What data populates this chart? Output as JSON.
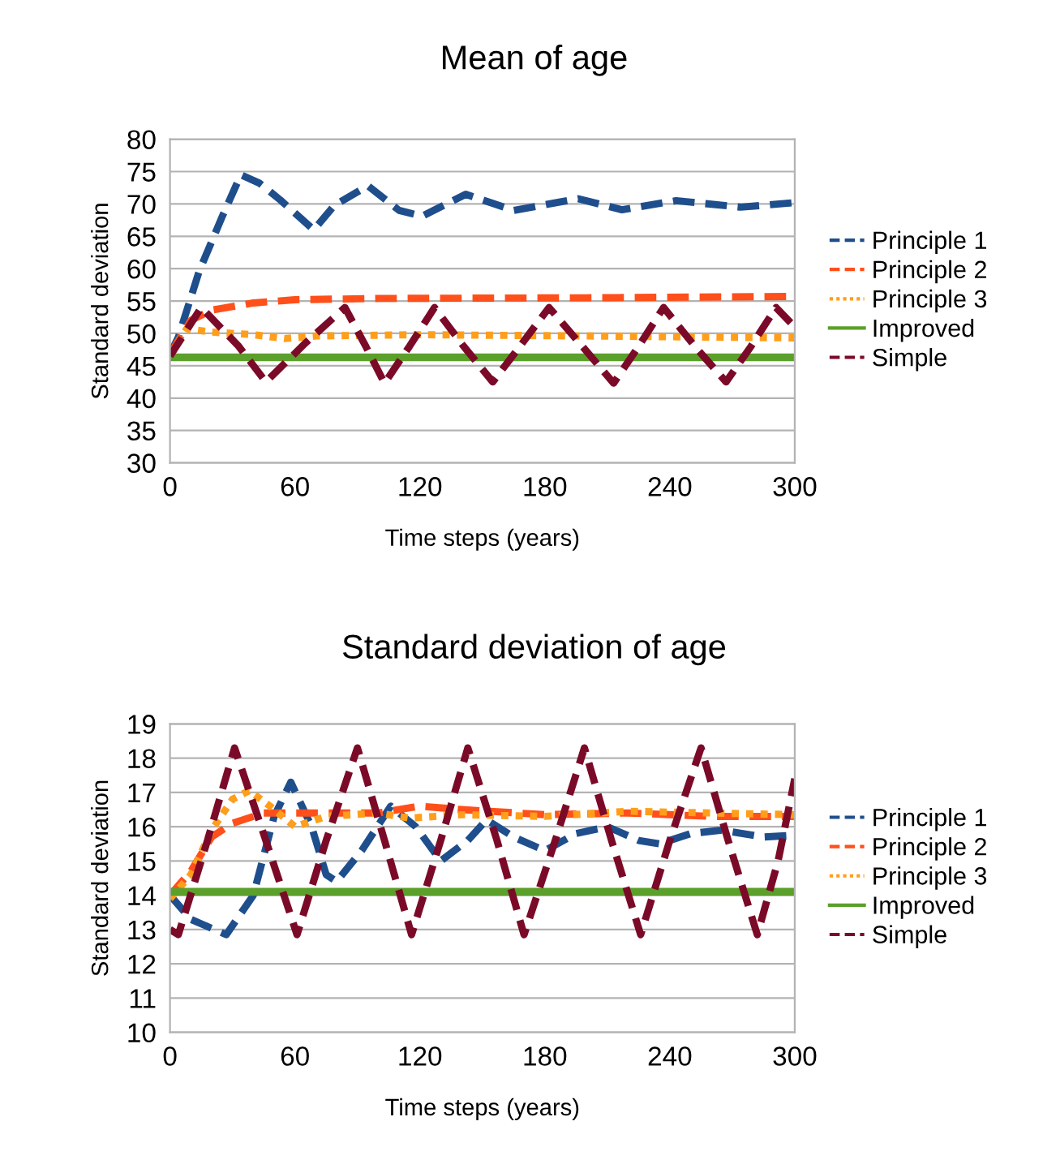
{
  "chart_data": [
    {
      "type": "line",
      "title": "Mean of age",
      "xlabel": "Time steps (years)",
      "ylabel": "Standard deviation",
      "xlim": [
        0,
        300
      ],
      "xticks": [
        0,
        60,
        120,
        180,
        240,
        300
      ],
      "ylim": [
        30,
        80
      ],
      "yticks": [
        30,
        35,
        40,
        45,
        50,
        55,
        60,
        65,
        70,
        75,
        80
      ],
      "grid": "y",
      "legend": "right",
      "marker": "none",
      "series": [
        {
          "name": "Principle 1",
          "color": "#1f4e8c",
          "line_style": "dashed",
          "x": [
            0,
            4,
            14,
            25,
            34,
            43,
            53,
            69,
            79,
            95,
            110,
            121,
            142,
            165,
            196,
            217,
            243,
            274,
            300
          ],
          "values": [
            46.8,
            49.4,
            59.6,
            68,
            74.5,
            73.2,
            70.6,
            66,
            69.8,
            72.8,
            69,
            68.1,
            71.5,
            69,
            70.8,
            69.1,
            70.5,
            69.5,
            70.2
          ]
        },
        {
          "name": "Principle 2",
          "color": "#ff4f1a",
          "line_style": "dashed",
          "x": [
            0,
            10,
            20,
            40,
            60,
            100,
            200,
            300
          ],
          "values": [
            46.8,
            52,
            53.6,
            54.7,
            55.2,
            55.4,
            55.5,
            55.7
          ]
        },
        {
          "name": "Principle 3",
          "color": "#ff9e1a",
          "line_style": "dotted",
          "x": [
            0,
            8,
            20,
            40,
            55,
            70,
            120,
            200,
            300
          ],
          "values": [
            46.5,
            50.7,
            50.2,
            49.8,
            49.2,
            49.6,
            49.8,
            49.6,
            49.3
          ]
        },
        {
          "name": "Improved",
          "color": "#5ba02a",
          "line_style": "solid",
          "x": [
            0,
            300
          ],
          "values": [
            46.3,
            46.3
          ]
        },
        {
          "name": "Simple",
          "color": "#7b0a28",
          "line_style": "dashed",
          "x": [
            0,
            15,
            33,
            46,
            65,
            84,
            94,
            103,
            115,
            127,
            141,
            155,
            168,
            182,
            198,
            213,
            225,
            237,
            252,
            267,
            279,
            291,
            300
          ],
          "values": [
            46.5,
            54,
            48,
            42.5,
            48.5,
            54,
            48,
            42.3,
            48,
            54,
            48,
            42.5,
            48,
            54,
            48,
            42.3,
            48,
            54,
            48,
            42.5,
            48,
            54,
            51
          ]
        }
      ]
    },
    {
      "type": "line",
      "title": "Standard deviation of age",
      "xlabel": "Time steps (years)",
      "ylabel": "Standard deviation",
      "xlim": [
        0,
        300
      ],
      "xticks": [
        0,
        60,
        120,
        180,
        240,
        300
      ],
      "ylim": [
        10,
        19
      ],
      "yticks": [
        10,
        11,
        12,
        13,
        14,
        15,
        16,
        17,
        18,
        19
      ],
      "grid": "y",
      "legend": "right",
      "marker": "none",
      "series": [
        {
          "name": "Principle 1",
          "color": "#1f4e8c",
          "line_style": "dashed",
          "x": [
            0,
            10,
            27,
            40,
            50,
            58,
            68,
            75,
            80,
            92,
            106,
            118,
            130,
            143,
            152,
            165,
            180,
            195,
            210,
            225,
            235,
            250,
            265,
            285,
            300
          ],
          "values": [
            14.0,
            13.3,
            12.85,
            14,
            16.3,
            17.3,
            16,
            14.6,
            14.4,
            15.3,
            16.6,
            16,
            15.0,
            15.6,
            16.2,
            15.7,
            15.3,
            15.8,
            16.0,
            15.6,
            15.5,
            15.8,
            15.9,
            15.7,
            15.75
          ]
        },
        {
          "name": "Principle 2",
          "color": "#ff4f1a",
          "line_style": "dashed",
          "x": [
            0,
            10,
            20,
            30,
            45,
            60,
            100,
            120,
            140,
            180,
            220,
            260,
            300
          ],
          "values": [
            14.0,
            14.7,
            15.7,
            16.1,
            16.4,
            16.4,
            16.4,
            16.6,
            16.5,
            16.35,
            16.4,
            16.3,
            16.3
          ]
        },
        {
          "name": "Principle 3",
          "color": "#ff9e1a",
          "line_style": "dotted",
          "x": [
            0,
            10,
            20,
            30,
            38,
            48,
            60,
            75,
            100,
            115,
            140,
            180,
            220,
            260,
            300
          ],
          "values": [
            13.9,
            14.6,
            15.9,
            16.8,
            17.05,
            16.6,
            16.0,
            16.3,
            16.4,
            16.25,
            16.35,
            16.3,
            16.45,
            16.4,
            16.35
          ]
        },
        {
          "name": "Improved",
          "color": "#5ba02a",
          "line_style": "solid",
          "x": [
            0,
            300
          ],
          "values": [
            14.1,
            14.1
          ]
        },
        {
          "name": "Simple",
          "color": "#7b0a28",
          "line_style": "dashed",
          "x": [
            0,
            4,
            18,
            31,
            46,
            61,
            75,
            90,
            103,
            116,
            130,
            143,
            157,
            170,
            185,
            199,
            212,
            226,
            240,
            255,
            268,
            282,
            292,
            300
          ],
          "values": [
            13.0,
            12.85,
            15.6,
            18.3,
            15.6,
            12.85,
            15.6,
            18.3,
            15.6,
            12.85,
            15.6,
            18.3,
            15.6,
            12.85,
            15.6,
            18.3,
            15.6,
            12.85,
            15.6,
            18.3,
            15.6,
            12.85,
            15,
            17.4
          ]
        }
      ]
    }
  ]
}
